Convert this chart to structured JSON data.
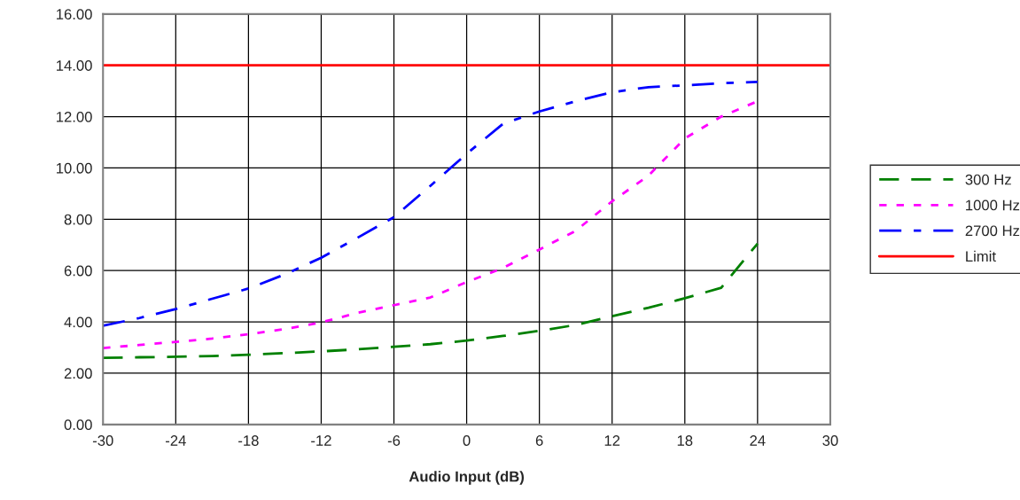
{
  "chart_data": {
    "type": "line",
    "xlabel": "Audio Input (dB)",
    "x": [
      -30,
      -27,
      -24,
      -21,
      -18,
      -15,
      -12,
      -9,
      -6,
      -3,
      0,
      3,
      6,
      9,
      12,
      15,
      18,
      21,
      24
    ],
    "series": [
      {
        "name": "300 Hz",
        "color": "#008000",
        "line_style": "dashed",
        "values": [
          2.6,
          2.62,
          2.64,
          2.67,
          2.72,
          2.78,
          2.85,
          2.93,
          3.03,
          3.13,
          3.27,
          3.45,
          3.65,
          3.88,
          4.22,
          4.55,
          4.92,
          5.33,
          7.05
        ]
      },
      {
        "name": "1000 Hz",
        "color": "#ff00ff",
        "line_style": "dotted",
        "values": [
          2.98,
          3.1,
          3.22,
          3.35,
          3.52,
          3.72,
          3.98,
          4.35,
          4.65,
          4.95,
          5.55,
          6.1,
          6.82,
          7.55,
          8.7,
          9.7,
          11.15,
          12.0,
          12.6
        ]
      },
      {
        "name": "2700 Hz",
        "color": "#0000ff",
        "line_style": "dashdot",
        "values": [
          3.85,
          4.15,
          4.5,
          4.9,
          5.3,
          5.85,
          6.5,
          7.28,
          8.08,
          9.3,
          10.55,
          11.72,
          12.2,
          12.6,
          12.95,
          13.15,
          13.22,
          13.3,
          13.35
        ]
      },
      {
        "name": "Limit",
        "color": "#ff0000",
        "line_style": "solid",
        "x": [
          -30,
          30
        ],
        "values": [
          14,
          14
        ]
      }
    ],
    "xlim": [
      -30,
      30
    ],
    "xticks": [
      -30,
      -24,
      -18,
      -12,
      -6,
      0,
      6,
      12,
      18,
      24,
      30
    ],
    "ylim": [
      0,
      16
    ],
    "yticks": [
      {
        "value": 0,
        "label": "0.00"
      },
      {
        "value": 2,
        "label": "2.00"
      },
      {
        "value": 4,
        "label": "4.00"
      },
      {
        "value": 6,
        "label": "6.00"
      },
      {
        "value": 8,
        "label": "8.00"
      },
      {
        "value": 10,
        "label": "10.00"
      },
      {
        "value": 12,
        "label": "12.00"
      },
      {
        "value": 14,
        "label": "14.00"
      },
      {
        "value": 16,
        "label": "16.00"
      }
    ],
    "grid": true,
    "legend": "right",
    "marker": "none"
  }
}
